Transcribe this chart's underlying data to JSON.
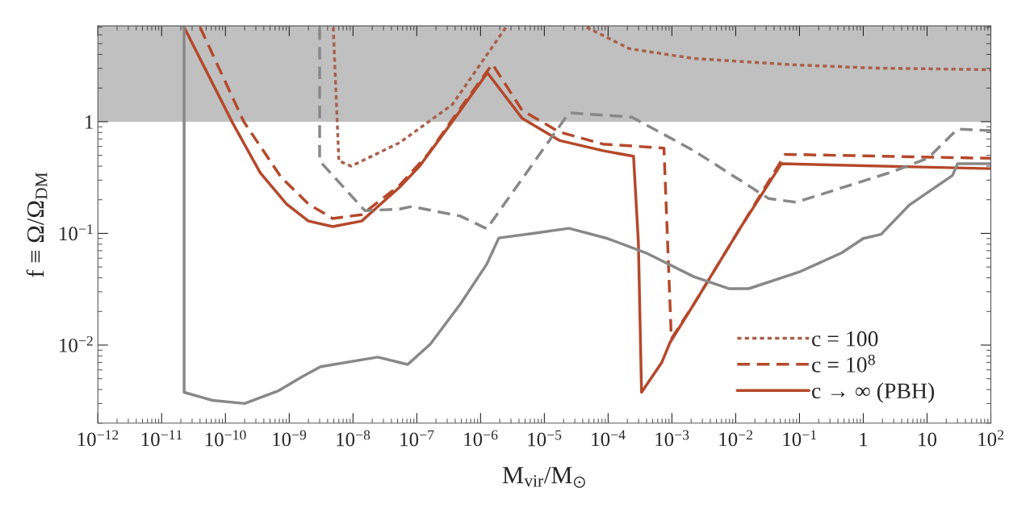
{
  "chart_data": {
    "type": "line",
    "xlabel": "M$_{vir}$/M$_{⊙}$",
    "ylabel": "f ≡ Ω/Ω$_{DM}$",
    "log": "xy",
    "xlim": [
      1e-12,
      100
    ],
    "ylim": [
      0.002,
      7.2
    ],
    "xticks": [
      {
        "value": 1e-12,
        "label": "10$^{−12}$"
      },
      {
        "value": 1e-11,
        "label": "10$^{−11}$"
      },
      {
        "value": 1e-10,
        "label": "10$^{−10}$"
      },
      {
        "value": 1e-09,
        "label": "10$^{−9}$"
      },
      {
        "value": 1e-08,
        "label": "10$^{−8}$"
      },
      {
        "value": 1e-07,
        "label": "10$^{−7}$"
      },
      {
        "value": 1e-06,
        "label": "10$^{−6}$"
      },
      {
        "value": 1e-05,
        "label": "10$^{−5}$"
      },
      {
        "value": 0.0001,
        "label": "10$^{−4}$"
      },
      {
        "value": 0.001,
        "label": "10$^{−3}$"
      },
      {
        "value": 0.01,
        "label": "10$^{−2}$"
      },
      {
        "value": 0.1,
        "label": "10$^{−1}$"
      },
      1,
      10,
      {
        "value": 100,
        "label": "10$^{2}$"
      }
    ],
    "yticks": [
      {
        "value": 0.01,
        "label": "10$^{−2}$"
      },
      {
        "value": 0.1,
        "label": "10$^{−1}$"
      },
      1
    ],
    "bands": [
      {
        "axis": "y",
        "from": 1,
        "to": 7.2,
        "color": "#c0c0c0"
      }
    ],
    "grid": false,
    "legend": "bottom right",
    "series": [
      {
        "name": "c = 100",
        "color": "#a9604b",
        "line_style": "dotted",
        "x": [
          4.9e-09,
          6e-09,
          9.4e-09,
          5.4e-08,
          3.6e-07,
          2.5e-06,
          null,
          4.6e-05,
          0.000216,
          0.0022,
          0.08,
          1.47,
          100
        ],
        "values": [
          7,
          0.445,
          0.4,
          0.65,
          1.42,
          7,
          null,
          7,
          4.5,
          3.68,
          3.23,
          3.02,
          2.92
        ]
      },
      {
        "name": "c = 10$^{8}$",
        "color": "#b5482a",
        "line_style": "dashed",
        "x": [
          4e-11,
          1.94e-10,
          7.4e-10,
          2e-09,
          4.8e-09,
          1.37e-08,
          5.4e-08,
          1.49e-07,
          4.1e-07,
          1.53e-06,
          4.5e-06,
          1.71e-05,
          8.3e-05,
          0.00075,
          0.00098,
          0.0022,
          0.0117,
          0.0596,
          100
        ],
        "values": [
          7,
          1.0,
          0.32,
          0.183,
          0.136,
          0.147,
          0.27,
          0.51,
          1.16,
          3.28,
          1.26,
          0.81,
          0.63,
          0.58,
          0.0114,
          0.0232,
          0.111,
          0.51,
          0.47
        ]
      },
      {
        "name": "c → ∞ (PBH)",
        "color": "#b5482a",
        "line_style": "solid",
        "x": [
          2.25e-11,
          1.29e-10,
          3.5e-10,
          9.1e-10,
          2e-09,
          4.8e-09,
          1.37e-08,
          5.4e-08,
          1.11e-07,
          3.6e-07,
          1.28e-06,
          4.5e-06,
          1.71e-05,
          8.3e-05,
          0.00025,
          0.000298,
          0.000334,
          0.00069,
          0.00093,
          0.0022,
          0.0117,
          0.052,
          100
        ],
        "values": [
          7,
          0.98,
          0.35,
          0.183,
          0.129,
          0.115,
          0.129,
          0.26,
          0.4,
          1.0,
          2.74,
          1.07,
          0.68,
          0.55,
          0.49,
          0.083,
          0.00378,
          0.00695,
          0.0105,
          0.0232,
          0.111,
          0.42,
          0.38
        ]
      },
      {
        "color": "#888888",
        "line_style": "dashed",
        "x": [
          3e-09,
          3e-09,
          1.53e-08,
          5.4e-08,
          8.3e-08,
          4.8e-07,
          1.25e-06,
          2.43e-05,
          0.000235,
          0.0022,
          0.033,
          0.089,
          2.6,
          10.3,
          30,
          100
        ],
        "values": [
          7,
          0.445,
          0.16,
          0.165,
          0.174,
          0.143,
          0.11,
          1.2,
          1.1,
          0.55,
          0.205,
          0.19,
          0.35,
          0.47,
          0.86,
          0.83
        ]
      },
      {
        "color": "#888888",
        "line_style": "solid",
        "x": [
          2.25e-11,
          2.25e-11,
          6.25e-11,
          2e-10,
          6.8e-10,
          1.63e-09,
          3.1e-09,
          2.45e-08,
          7.2e-08,
          1.63e-07,
          4.8e-07,
          1.25e-06,
          1.93e-06,
          6.6e-06,
          2.43e-05,
          9.8e-05,
          0.00039,
          0.0022,
          0.0078,
          0.016,
          0.098,
          0.46,
          1.0,
          1.9,
          5.3,
          25,
          30,
          100
        ],
        "values": [
          7,
          0.00378,
          0.0032,
          0.003,
          0.0039,
          0.00525,
          0.0064,
          0.0078,
          0.0067,
          0.0102,
          0.0232,
          0.053,
          0.091,
          0.1,
          0.111,
          0.09,
          0.067,
          0.041,
          0.032,
          0.032,
          0.045,
          0.067,
          0.09,
          0.098,
          0.18,
          0.33,
          0.42,
          0.42
        ]
      }
    ]
  }
}
